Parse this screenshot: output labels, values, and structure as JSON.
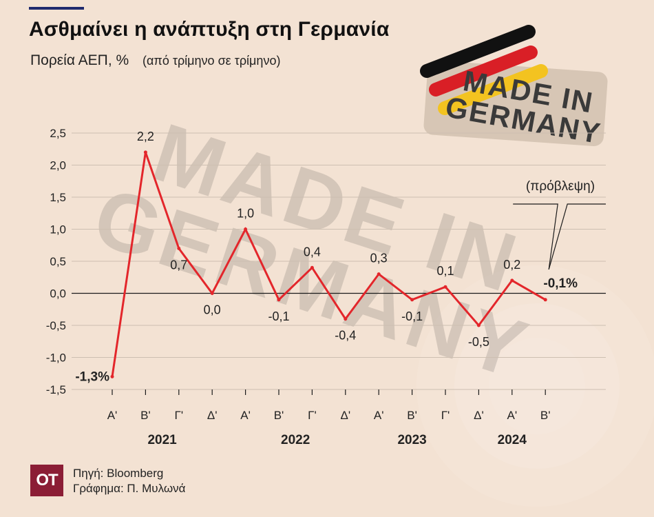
{
  "header": {
    "title": "Ασθμαίνει η ανάπτυξη στη Γερμανία",
    "subtitle": "Πορεία ΑΕΠ, %",
    "subtitle_note": "(από τρίμηνο σε τρίμηνο)"
  },
  "badge": {
    "line1": "MADE IN",
    "line2": "GERMANY"
  },
  "chart_data": {
    "type": "line",
    "categories": [
      "Α'",
      "Β'",
      "Γ'",
      "Δ'",
      "Α'",
      "Β'",
      "Γ'",
      "Δ'",
      "Α'",
      "Β'",
      "Γ'",
      "Δ'",
      "Α'",
      "Β'"
    ],
    "values": [
      -1.3,
      2.2,
      0.7,
      0.0,
      1.0,
      -0.1,
      0.4,
      -0.4,
      0.3,
      -0.1,
      0.1,
      -0.5,
      0.2,
      -0.1
    ],
    "value_labels": [
      "-1,3%",
      "2,2",
      "0,7",
      "0,0",
      "1,0",
      "-0,1",
      "0,4",
      "-0,4",
      "0,3",
      "-0,1",
      "0,1",
      "-0,5",
      "0,2",
      "-0,1%"
    ],
    "label_bold": [
      true,
      false,
      false,
      false,
      false,
      false,
      false,
      false,
      false,
      false,
      false,
      false,
      false,
      true
    ],
    "year_labels": [
      "2021",
      "2022",
      "2023",
      "2024"
    ],
    "year_spans": [
      [
        0,
        3
      ],
      [
        4,
        7
      ],
      [
        8,
        10
      ],
      [
        11,
        13
      ]
    ],
    "ylim": [
      -1.5,
      2.5
    ],
    "yticks": [
      2.5,
      2.0,
      1.5,
      1.0,
      0.5,
      0.0,
      -0.5,
      -1.0,
      -1.5
    ],
    "ytick_labels": [
      "2,5",
      "2,0",
      "1,5",
      "1,0",
      "0,5",
      "0,0",
      "-0,5",
      "-1,0",
      "-1,5"
    ],
    "series_color": "#e3262b",
    "grid": true,
    "annotation": "(πρόβλεψη)",
    "annotation_index": 13,
    "xlabel": "",
    "ylabel": ""
  },
  "footer": {
    "logo": "ΟΤ",
    "source": "Πηγή: Bloomberg",
    "credit": "Γράφημα: Π. Μυλωνά"
  }
}
